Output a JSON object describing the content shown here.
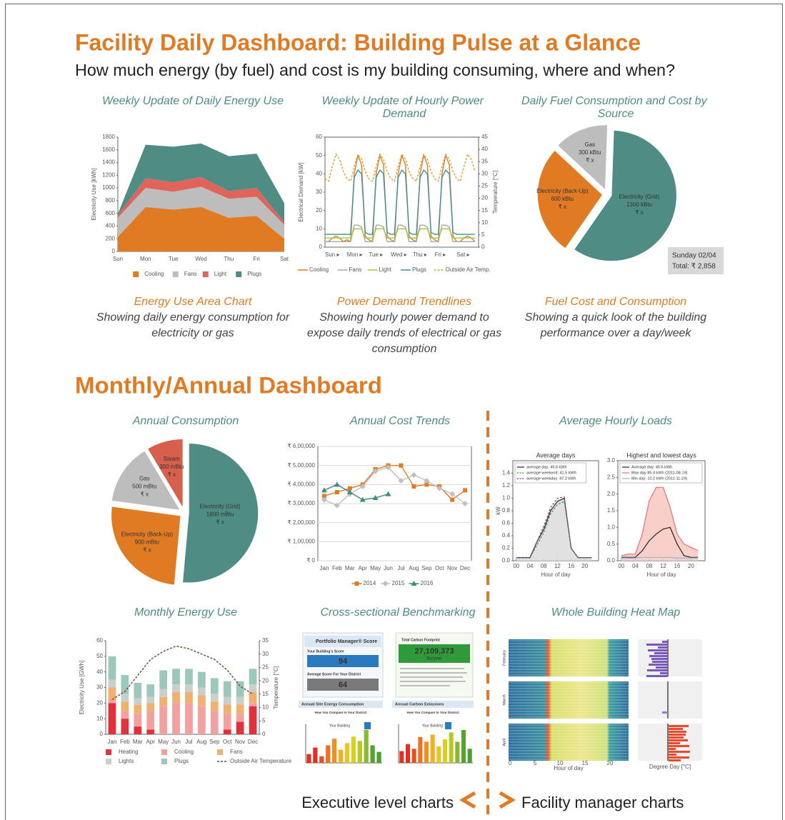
{
  "header": {
    "title": "Facility Daily Dashboard: Building Pulse at a Glance",
    "subtitle": "How much energy (by fuel) and cost is my building consuming, where and when?"
  },
  "captions": [
    {
      "title": "Energy Use Area Chart",
      "lines": [
        "Showing daily energy consumption for",
        "electricity or gas"
      ]
    },
    {
      "title": "Power Demand Trendlines",
      "lines": [
        "Showing hourly power demand to",
        "expose daily trends of electrical or gas",
        "consumption"
      ]
    },
    {
      "title": "Fuel Cost and Consumption",
      "lines": [
        "Showing a quick look of the building",
        "performance over a day/week"
      ]
    }
  ],
  "monthly_section": {
    "title": "Monthly/Annual Dashboard"
  },
  "hourly_loads": {
    "title": "Average Hourly Loads"
  },
  "benchmarking": {
    "title": "Cross-sectional Benchmarking",
    "score_box": {
      "brand": "Portfolio Manager® Score",
      "score_label": "Your Building's Score",
      "score": 94,
      "avg_label": "Average Score For Your District",
      "avg": 64
    },
    "carbon_box": {
      "title": "Total Carbon Footprint",
      "value": "27,109,373",
      "unit": "lbs/year"
    },
    "site_energy": {
      "title": "Annual Site Energy Consumption",
      "subtitle": "How You Compare to Your District",
      "marker": "Your Building"
    },
    "carbon_emissions": {
      "title": "Annual Carbon Emissions",
      "subtitle": "How You Compare to Your District",
      "marker": "Your Building"
    }
  },
  "heat_map": {
    "title": "Whole Building Heat Map",
    "rows": [
      "February",
      "March",
      "April"
    ],
    "xticks": [
      0,
      5,
      10,
      15,
      20
    ],
    "xlabel": "Hour of day",
    "x2label": "Degree Day [°C]"
  },
  "footer": {
    "left": "Executive level charts",
    "right": "Facility manager charts"
  },
  "chart_data": [
    {
      "type": "area",
      "title": "Weekly Update of Daily Energy Use",
      "ylabel": "Electricity Use [kWh]",
      "categories": [
        "Sun",
        "Mon",
        "Tue",
        "Wed",
        "Thu",
        "Fri",
        "Sat"
      ],
      "ylim": [
        0,
        1800
      ],
      "yticks": [
        0,
        200,
        400,
        600,
        800,
        1000,
        1200,
        1400,
        1600,
        1800
      ],
      "grid": false,
      "legend": "bottom",
      "series": [
        {
          "name": "Cooling",
          "color": "#e07b24",
          "values": [
            230,
            700,
            660,
            700,
            530,
            560,
            200
          ]
        },
        {
          "name": "Fans",
          "color": "#bdbdbd",
          "values": [
            300,
            300,
            280,
            320,
            300,
            300,
            220
          ]
        },
        {
          "name": "Light",
          "color": "#e0645a",
          "values": [
            40,
            150,
            150,
            150,
            120,
            140,
            40
          ]
        },
        {
          "name": "Plugs",
          "color": "#4e8c84",
          "values": [
            20,
            530,
            560,
            530,
            550,
            540,
            300
          ]
        }
      ]
    },
    {
      "type": "line",
      "title": "Weekly Update of Hourly Power Demand",
      "ylabel": "Electrical Demand [kW]",
      "y2label": "Temperature [°C]",
      "frame": true,
      "grid": false,
      "legend": "bottom",
      "categories": [
        "Sun ▸",
        null,
        null,
        null,
        null,
        null,
        "Mon ▸",
        null,
        null,
        null,
        null,
        null,
        "Tue ▸",
        null,
        null,
        null,
        null,
        null,
        "Wed ▸",
        null,
        null,
        null,
        null,
        null,
        "Thu ▸",
        null,
        null,
        null,
        null,
        null,
        "Fri ▸",
        null,
        null,
        null,
        null,
        null,
        "Sat ▸",
        null,
        null,
        null,
        null,
        null
      ],
      "ylim": [
        0,
        60
      ],
      "yticks": [
        0,
        10,
        20,
        30,
        40,
        50,
        60
      ],
      "y2lim": [
        0,
        45
      ],
      "y2ticks": [
        0,
        5,
        10,
        15,
        20,
        25,
        30,
        35,
        40,
        45
      ],
      "series": [
        {
          "name": "Cooling",
          "color": "#e07b24",
          "values": [
            3,
            3,
            5,
            6,
            5,
            3,
            4,
            3,
            40,
            50,
            45,
            6,
            4,
            3,
            40,
            50,
            45,
            6,
            4,
            3,
            40,
            50,
            45,
            6,
            4,
            3,
            40,
            50,
            45,
            6,
            4,
            3,
            40,
            50,
            45,
            6,
            3,
            3,
            5,
            6,
            5,
            3
          ]
        },
        {
          "name": "Fans",
          "color": "#a8a8a8",
          "values": [
            3,
            3,
            3,
            3,
            3,
            3,
            3,
            3,
            12,
            12,
            11,
            3,
            3,
            3,
            12,
            12,
            11,
            3,
            3,
            3,
            12,
            12,
            11,
            3,
            3,
            3,
            12,
            12,
            11,
            3,
            3,
            3,
            12,
            12,
            11,
            3,
            3,
            3,
            3,
            3,
            3,
            3
          ]
        },
        {
          "name": "Light",
          "color": "#a8c43a",
          "values": [
            5,
            5,
            5,
            5,
            5,
            5,
            5,
            5,
            10,
            10,
            10,
            5,
            5,
            5,
            10,
            10,
            10,
            5,
            5,
            5,
            10,
            10,
            10,
            5,
            5,
            5,
            10,
            10,
            10,
            5,
            5,
            5,
            10,
            10,
            10,
            5,
            5,
            5,
            5,
            5,
            5,
            5
          ]
        },
        {
          "name": "Plugs",
          "color": "#3f8f9a",
          "values": [
            7,
            7,
            7,
            7,
            7,
            7,
            7,
            7,
            38,
            42,
            40,
            8,
            7,
            7,
            38,
            42,
            40,
            8,
            7,
            7,
            38,
            42,
            40,
            8,
            7,
            7,
            38,
            42,
            40,
            8,
            7,
            7,
            38,
            42,
            40,
            8,
            7,
            7,
            7,
            7,
            7,
            7
          ]
        },
        {
          "name": "Outside Air Temp.",
          "color": "#e0a030",
          "style": "dashed",
          "axis": "y2",
          "values": [
            28,
            27,
            33,
            38,
            36,
            31,
            28,
            27,
            33,
            38,
            36,
            31,
            28,
            27,
            33,
            38,
            36,
            31,
            28,
            27,
            33,
            38,
            36,
            31,
            28,
            27,
            33,
            38,
            36,
            31,
            28,
            27,
            33,
            38,
            36,
            31,
            28,
            27,
            33,
            38,
            36,
            31
          ]
        }
      ]
    },
    {
      "type": "pie",
      "title": "Daily Fuel Consumption and Cost by Source",
      "exploded": true,
      "labels": [
        "Electricity (Grid)",
        "Electricity (Back-Up)",
        "Gas"
      ],
      "values": [
        1300,
        600,
        300
      ],
      "value_labels": [
        "1300 kBtu",
        "600 kBtu",
        "300 kBtu"
      ],
      "cost_labels": [
        "₹ x",
        "₹ x",
        "₹ x"
      ],
      "colors": [
        "#4e8c84",
        "#e07b24",
        "#bdbdbd"
      ],
      "annotation": [
        "Sunday 02/04",
        "Total: ₹ 2,858"
      ]
    },
    {
      "type": "pie",
      "title": "Annual Consumption",
      "exploded": true,
      "labels": [
        "Electricity (Grid)",
        "Electricity (Back-Up)",
        "Gas",
        "Steam"
      ],
      "values": [
        1800,
        900,
        500,
        300
      ],
      "value_labels": [
        "1800 mBtu",
        "900 mBtu",
        "500 mBtu",
        "300 mBtu"
      ],
      "cost_labels": [
        "₹ x",
        "₹ x",
        "₹ x",
        "₹ x"
      ],
      "colors": [
        "#4e8c84",
        "#e07b24",
        "#bdbdbd",
        "#d6604d"
      ]
    },
    {
      "type": "line",
      "title": "Annual Cost Trends",
      "frame": true,
      "grid": true,
      "legend": "bottom",
      "categories": [
        "Jan",
        "Feb",
        "Mar",
        "Apr",
        "May",
        "Jun",
        "Jul",
        "Aug",
        "Sep",
        "Oct",
        "Nov",
        "Dec"
      ],
      "ylim": [
        0,
        600000
      ],
      "yticks": [
        {
          "value": 0,
          "label": "₹ 0"
        },
        {
          "value": 100000,
          "label": "₹ 1,00,000"
        },
        {
          "value": 200000,
          "label": "₹ 2,00,000"
        },
        {
          "value": 300000,
          "label": "₹ 3,00,000"
        },
        {
          "value": 400000,
          "label": "₹ 4,00,000"
        },
        {
          "value": 500000,
          "label": "₹ 5,00,000"
        },
        {
          "value": 600000,
          "label": "₹ 6,00,000"
        }
      ],
      "series": [
        {
          "name": "2014",
          "color": "#e07b24",
          "marker": "square",
          "values": [
            340000,
            360000,
            380000,
            400000,
            480000,
            500000,
            500000,
            390000,
            400000,
            390000,
            320000,
            370000
          ]
        },
        {
          "name": "2015",
          "color": "#c0c0c0",
          "marker": "diamond",
          "values": [
            320000,
            290000,
            350000,
            390000,
            470000,
            490000,
            420000,
            450000,
            420000,
            380000,
            350000,
            300000
          ]
        },
        {
          "name": "2016",
          "color": "#3d8c7c",
          "marker": "triangle",
          "values": [
            370000,
            400000,
            360000,
            320000,
            330000,
            350000,
            null,
            null,
            null,
            null,
            null,
            null
          ]
        }
      ]
    },
    {
      "type": "line",
      "title": "Average days",
      "ylabel": "kW",
      "xlabel": "Hour of day",
      "frame": true,
      "grid": false,
      "legend": "upper left",
      "x": [
        0,
        2,
        4,
        6,
        8,
        10,
        12,
        14,
        16,
        18,
        20,
        22
      ],
      "xlim": [
        -1,
        24
      ],
      "xticks": [
        {
          "value": 0,
          "label": "00"
        },
        {
          "value": 4,
          "label": "04"
        },
        {
          "value": 8,
          "label": "08"
        },
        12,
        16,
        20
      ],
      "ylim": [
        0,
        1.6
      ],
      "yticks": [
        {
          "value": 0,
          "label": "0.0"
        },
        0.2,
        0.4,
        0.6,
        0.8,
        {
          "value": 1,
          "label": "1.0"
        },
        1.2,
        1.4
      ],
      "series": [
        {
          "name": "average day: 45.6 kWh",
          "color": "#222222",
          "fill": "#dcdcdc",
          "values": [
            0.05,
            0.05,
            0.05,
            0.3,
            0.5,
            0.8,
            0.95,
            1.0,
            0.2,
            0.05,
            0.05,
            0.05
          ]
        },
        {
          "name": "average weekend: 41.5 kWh",
          "color": "#3a9a3a",
          "style": "dashed",
          "values": [
            0.05,
            0.05,
            0.05,
            0.25,
            0.45,
            0.75,
            0.9,
            0.95,
            0.2,
            0.05,
            0.05,
            0.05
          ]
        },
        {
          "name": "average weekday: 47.2 kWh",
          "color": "#8a3a9a",
          "style": "dashed",
          "values": [
            0.05,
            0.05,
            0.05,
            0.3,
            0.55,
            0.85,
            1.0,
            1.02,
            0.2,
            0.05,
            0.05,
            0.05
          ]
        }
      ]
    },
    {
      "type": "line",
      "title": "Highest and lowest days",
      "xlabel": "Hour of day",
      "frame": true,
      "grid": false,
      "legend": "upper left",
      "x": [
        0,
        2,
        4,
        6,
        8,
        10,
        12,
        14,
        16,
        18,
        20,
        22
      ],
      "xlim": [
        -1,
        24
      ],
      "xticks": [
        {
          "value": 0,
          "label": "00"
        },
        {
          "value": 4,
          "label": "04"
        },
        {
          "value": 8,
          "label": "08"
        },
        12,
        16,
        20
      ],
      "ylim": [
        0,
        3
      ],
      "yticks": [
        {
          "value": 0,
          "label": "0.0"
        },
        0.5,
        {
          "value": 1,
          "label": "1.0"
        },
        1.5,
        {
          "value": 2,
          "label": "2.0"
        },
        2.5,
        {
          "value": 3,
          "label": "3.0"
        }
      ],
      "series": [
        {
          "name": "Average day: 45.6 kWh",
          "color": "#222222",
          "values": [
            0.1,
            0.1,
            0.1,
            0.3,
            0.6,
            0.8,
            0.95,
            1.0,
            0.5,
            0.15,
            0.1,
            0.1
          ]
        },
        {
          "name": "Max day 85.4 kWh (2011-08-19)",
          "color": "#e8706a",
          "fill": "#f8c8c0",
          "values": [
            0.15,
            0.2,
            0.2,
            0.8,
            1.8,
            2.2,
            2.2,
            1.6,
            0.8,
            0.5,
            0.4,
            0.3
          ]
        },
        {
          "name": "Min day: 10.2 kWh (2011-11-24)",
          "color": "#8ab8e0",
          "values": [
            0.08,
            0.08,
            0.08,
            0.1,
            0.1,
            0.1,
            0.1,
            0.1,
            0.08,
            0.08,
            0.08,
            0.08
          ]
        }
      ]
    },
    {
      "type": "bar",
      "title": "Monthly Energy Use",
      "stacked": true,
      "ylabel": "Electricity Use [GWh]",
      "y2label": "Temperature [°C]",
      "grid": false,
      "legend": "bottom",
      "categories": [
        "Jan",
        "Feb",
        "Mar",
        "Apr",
        "May",
        "Jun",
        "Jul",
        "Aug",
        "Sep",
        "Oct",
        "Nov",
        "Dec"
      ],
      "ylim": [
        0,
        60
      ],
      "yticks": [
        0,
        10,
        20,
        30,
        40,
        50,
        60
      ],
      "y2lim": [
        0,
        35
      ],
      "y2ticks": [
        0,
        5,
        10,
        15,
        20,
        25,
        30,
        35
      ],
      "series": [
        {
          "name": "Heating",
          "color": "#e0323c",
          "values": [
            20,
            10,
            5,
            3,
            0,
            0,
            0,
            0,
            0,
            3,
            8,
            18
          ]
        },
        {
          "name": "Cooling",
          "color": "#f2a0a0",
          "values": [
            2,
            5,
            8,
            12,
            18,
            20,
            20,
            18,
            15,
            10,
            5,
            2
          ]
        },
        {
          "name": "Fans",
          "color": "#f0b070",
          "values": [
            8,
            6,
            6,
            5,
            6,
            7,
            7,
            7,
            6,
            6,
            6,
            7
          ]
        },
        {
          "name": "Lights",
          "color": "#c8d0c8",
          "values": [
            5,
            5,
            4,
            4,
            5,
            5,
            5,
            5,
            5,
            5,
            5,
            5
          ]
        },
        {
          "name": "Plugs",
          "color": "#9cc8bc",
          "values": [
            15,
            12,
            10,
            8,
            12,
            10,
            10,
            10,
            10,
            10,
            10,
            10
          ]
        },
        {
          "name": "Outside Air Temperature",
          "color": "#7a4a3a",
          "kind": "line",
          "style": "dashed",
          "axis": "y2",
          "values": [
            13,
            16,
            22,
            28,
            31,
            33,
            32,
            30,
            28,
            24,
            18,
            15
          ]
        }
      ]
    },
    {
      "type": "bar",
      "values": [
        20,
        35,
        15,
        40,
        55,
        30,
        45,
        60,
        50,
        75,
        40,
        25
      ],
      "colors": [
        "#e03020",
        "#e03020",
        "#e85020",
        "#f07020",
        "#f09020",
        "#f0b020",
        "#e8c820",
        "#d8d020",
        "#b8c820",
        "#88b830",
        "#58a030",
        "#48a030"
      ]
    },
    {
      "type": "bar",
      "values": [
        25,
        40,
        30,
        55,
        45,
        60,
        35,
        50,
        65,
        45,
        70,
        30
      ],
      "colors": [
        "#e03020",
        "#e03020",
        "#e85020",
        "#f07020",
        "#f09020",
        "#f0b020",
        "#e8c820",
        "#d8d020",
        "#b8c820",
        "#88b830",
        "#58a030",
        "#48a030"
      ]
    }
  ]
}
